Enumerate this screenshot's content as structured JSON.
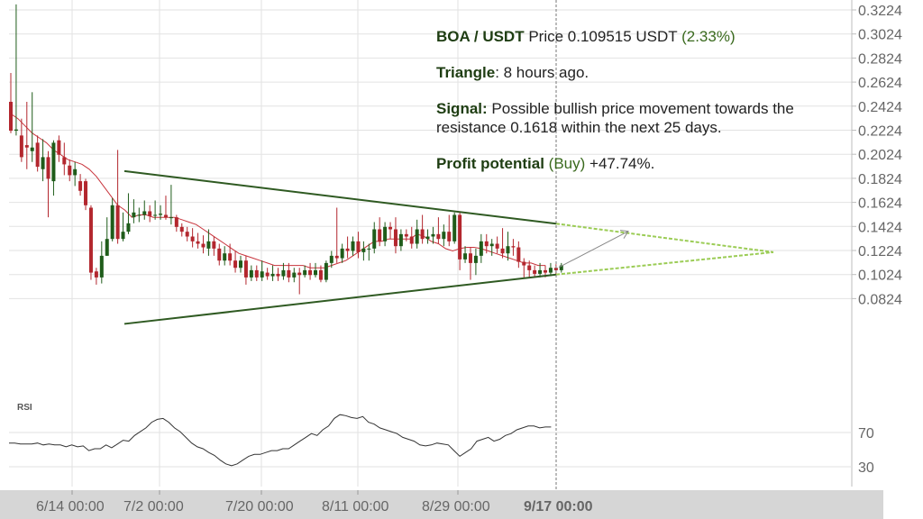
{
  "chart_data": {
    "type": "candlestick",
    "pair": "BOA / USDT",
    "y_ticks": [
      "0.3224",
      "0.3024",
      "0.2824",
      "0.2624",
      "0.2424",
      "0.2224",
      "0.2024",
      "0.1824",
      "0.1624",
      "0.1424",
      "0.1224",
      "0.1024",
      "0.0824"
    ],
    "ylim": [
      0.0824,
      0.3224
    ],
    "x_ticks": [
      "6/14 00:00",
      "7/2 00:00",
      "7/20 00:00",
      "8/11 00:00",
      "8/29 00:00"
    ],
    "current_time_label": "9/17 00:00",
    "rsi_label": "RSI",
    "rsi_ticks": [
      "70",
      "30"
    ],
    "rsi_range": [
      0,
      100
    ],
    "triangle": {
      "upper_start": 0.1884,
      "upper_end": 0.1447,
      "lower_start": 0.0614,
      "lower_end": 0.1024,
      "apex": 0.121
    },
    "projected_target": 0.1384,
    "candles": [
      [
        0.246,
        0.222,
        0.27,
        0.22
      ],
      [
        0.222,
        0.223,
        0.327,
        0.218
      ],
      [
        0.218,
        0.2,
        0.232,
        0.196
      ],
      [
        0.21,
        0.208,
        0.246,
        0.19
      ],
      [
        0.205,
        0.208,
        0.254,
        0.196
      ],
      [
        0.212,
        0.192,
        0.218,
        0.188
      ],
      [
        0.19,
        0.2,
        0.215,
        0.18
      ],
      [
        0.2,
        0.182,
        0.205,
        0.15
      ],
      [
        0.18,
        0.212,
        0.214,
        0.168
      ],
      [
        0.214,
        0.202,
        0.218,
        0.196
      ],
      [
        0.2,
        0.194,
        0.212,
        0.185
      ],
      [
        0.193,
        0.185,
        0.198,
        0.18
      ],
      [
        0.185,
        0.19,
        0.196,
        0.176
      ],
      [
        0.18,
        0.172,
        0.186,
        0.168
      ],
      [
        0.18,
        0.16,
        0.182,
        0.156
      ],
      [
        0.158,
        0.104,
        0.16,
        0.098
      ],
      [
        0.105,
        0.1,
        0.108,
        0.094
      ],
      [
        0.1,
        0.118,
        0.13,
        0.095
      ],
      [
        0.118,
        0.132,
        0.15,
        0.118
      ],
      [
        0.132,
        0.16,
        0.166,
        0.13
      ],
      [
        0.16,
        0.132,
        0.206,
        0.128
      ],
      [
        0.132,
        0.138,
        0.154,
        0.13
      ],
      [
        0.138,
        0.145,
        0.17,
        0.136
      ],
      [
        0.15,
        0.154,
        0.165,
        0.145
      ],
      [
        0.152,
        0.152,
        0.158,
        0.146
      ],
      [
        0.152,
        0.155,
        0.164,
        0.148
      ],
      [
        0.155,
        0.151,
        0.16,
        0.146
      ],
      [
        0.152,
        0.152,
        0.164,
        0.148
      ],
      [
        0.152,
        0.153,
        0.16,
        0.148
      ],
      [
        0.152,
        0.15,
        0.168,
        0.148
      ],
      [
        0.15,
        0.15,
        0.177,
        0.144
      ],
      [
        0.15,
        0.142,
        0.152,
        0.138
      ],
      [
        0.142,
        0.138,
        0.145,
        0.134
      ],
      [
        0.138,
        0.134,
        0.142,
        0.13
      ],
      [
        0.134,
        0.13,
        0.141,
        0.125
      ],
      [
        0.13,
        0.128,
        0.137,
        0.124
      ],
      [
        0.128,
        0.125,
        0.135,
        0.12
      ],
      [
        0.124,
        0.13,
        0.14,
        0.118
      ],
      [
        0.13,
        0.124,
        0.134,
        0.118
      ],
      [
        0.124,
        0.114,
        0.128,
        0.11
      ],
      [
        0.114,
        0.12,
        0.126,
        0.11
      ],
      [
        0.12,
        0.114,
        0.128,
        0.11
      ],
      [
        0.114,
        0.108,
        0.122,
        0.104
      ],
      [
        0.108,
        0.114,
        0.118,
        0.104
      ],
      [
        0.114,
        0.1,
        0.118,
        0.094
      ],
      [
        0.1,
        0.106,
        0.11,
        0.097
      ],
      [
        0.106,
        0.1,
        0.11,
        0.097
      ],
      [
        0.1,
        0.105,
        0.114,
        0.097
      ],
      [
        0.104,
        0.101,
        0.108,
        0.098
      ],
      [
        0.101,
        0.103,
        0.11,
        0.097
      ],
      [
        0.103,
        0.101,
        0.108,
        0.097
      ],
      [
        0.101,
        0.106,
        0.112,
        0.098
      ],
      [
        0.106,
        0.1,
        0.112,
        0.096
      ],
      [
        0.1,
        0.104,
        0.108,
        0.096
      ],
      [
        0.104,
        0.102,
        0.108,
        0.086
      ],
      [
        0.102,
        0.106,
        0.11,
        0.1
      ],
      [
        0.106,
        0.102,
        0.112,
        0.098
      ],
      [
        0.102,
        0.106,
        0.112,
        0.1
      ],
      [
        0.106,
        0.098,
        0.11,
        0.096
      ],
      [
        0.098,
        0.112,
        0.114,
        0.096
      ],
      [
        0.112,
        0.118,
        0.122,
        0.108
      ],
      [
        0.118,
        0.116,
        0.158,
        0.112
      ],
      [
        0.116,
        0.124,
        0.128,
        0.112
      ],
      [
        0.124,
        0.122,
        0.134,
        0.116
      ],
      [
        0.122,
        0.13,
        0.134,
        0.118
      ],
      [
        0.13,
        0.121,
        0.138,
        0.116
      ],
      [
        0.121,
        0.124,
        0.13,
        0.114
      ],
      [
        0.124,
        0.124,
        0.128,
        0.114
      ],
      [
        0.124,
        0.14,
        0.146,
        0.12
      ],
      [
        0.14,
        0.13,
        0.15,
        0.126
      ],
      [
        0.13,
        0.142,
        0.146,
        0.126
      ],
      [
        0.142,
        0.14,
        0.146,
        0.132
      ],
      [
        0.14,
        0.126,
        0.15,
        0.12
      ],
      [
        0.126,
        0.136,
        0.14,
        0.122
      ],
      [
        0.136,
        0.134,
        0.14,
        0.13
      ],
      [
        0.134,
        0.128,
        0.142,
        0.124
      ],
      [
        0.128,
        0.14,
        0.148,
        0.124
      ],
      [
        0.14,
        0.132,
        0.152,
        0.128
      ],
      [
        0.132,
        0.134,
        0.14,
        0.128
      ],
      [
        0.134,
        0.136,
        0.142,
        0.128
      ],
      [
        0.136,
        0.132,
        0.15,
        0.128
      ],
      [
        0.132,
        0.138,
        0.144,
        0.126
      ],
      [
        0.138,
        0.13,
        0.152,
        0.126
      ],
      [
        0.13,
        0.152,
        0.154,
        0.128
      ],
      [
        0.152,
        0.115,
        0.154,
        0.106
      ],
      [
        0.115,
        0.12,
        0.126,
        0.112
      ],
      [
        0.12,
        0.112,
        0.125,
        0.098
      ],
      [
        0.112,
        0.118,
        0.124,
        0.102
      ],
      [
        0.118,
        0.13,
        0.136,
        0.112
      ],
      [
        0.13,
        0.126,
        0.136,
        0.12
      ],
      [
        0.126,
        0.128,
        0.132,
        0.118
      ],
      [
        0.128,
        0.124,
        0.134,
        0.12
      ],
      [
        0.124,
        0.12,
        0.141,
        0.116
      ],
      [
        0.12,
        0.126,
        0.138,
        0.114
      ],
      [
        0.126,
        0.125,
        0.132,
        0.118
      ],
      [
        0.125,
        0.113,
        0.13,
        0.108
      ],
      [
        0.113,
        0.11,
        0.116,
        0.1
      ],
      [
        0.11,
        0.106,
        0.114,
        0.1
      ],
      [
        0.106,
        0.103,
        0.11,
        0.1
      ],
      [
        0.103,
        0.106,
        0.112,
        0.1
      ],
      [
        0.106,
        0.104,
        0.11,
        0.1
      ],
      [
        0.104,
        0.108,
        0.112,
        0.101
      ],
      [
        0.108,
        0.106,
        0.111,
        0.103
      ],
      [
        0.106,
        0.11,
        0.112,
        0.104
      ]
    ],
    "moving_average": [
      0.236,
      0.232,
      0.226,
      0.22,
      0.216,
      0.212,
      0.206,
      0.202,
      0.198,
      0.196,
      0.194,
      0.19,
      0.184,
      0.176,
      0.168,
      0.16,
      0.156,
      0.15,
      0.152,
      0.152,
      0.15,
      0.15,
      0.15,
      0.15,
      0.148,
      0.146,
      0.144,
      0.14,
      0.136,
      0.132,
      0.128,
      0.124,
      0.12,
      0.118,
      0.116,
      0.114,
      0.112,
      0.11,
      0.11,
      0.11,
      0.11,
      0.11,
      0.108,
      0.108,
      0.108,
      0.11,
      0.112,
      0.114,
      0.118,
      0.122,
      0.126,
      0.13,
      0.13,
      0.132,
      0.132,
      0.132,
      0.132,
      0.136,
      0.134,
      0.13,
      0.128,
      0.124,
      0.122,
      0.124,
      0.125,
      0.125,
      0.124,
      0.122,
      0.12,
      0.118,
      0.116,
      0.114,
      0.112,
      0.112,
      0.11,
      0.11
    ],
    "rsi": [
      46,
      46,
      45,
      45,
      45,
      46,
      44,
      45,
      44,
      44,
      42,
      44,
      42,
      43,
      38,
      40,
      40,
      44,
      41,
      45,
      49,
      48,
      54,
      58,
      62,
      68,
      71,
      72,
      68,
      62,
      58,
      52,
      46,
      42,
      40,
      36,
      33,
      28,
      24,
      22,
      24,
      28,
      32,
      34,
      34,
      36,
      38,
      38,
      40,
      40,
      44,
      48,
      52,
      56,
      54,
      60,
      64,
      72,
      76,
      75,
      73,
      72,
      74,
      68,
      66,
      62,
      60,
      58,
      56,
      52,
      50,
      48,
      44,
      43,
      44,
      46,
      45,
      44,
      38,
      32,
      36,
      40,
      48,
      50,
      52,
      48,
      50,
      54,
      56,
      60,
      62,
      64,
      64,
      62,
      63,
      63
    ],
    "info": {
      "title_bold": "BOA / USDT",
      "title_price": " Price 0.109515 USDT ",
      "title_change": "(2.33%)",
      "triangle_label": "Triangle",
      "triangle_text": ": 8 hours ago.",
      "signal_label": "Signal:",
      "signal_text": " Possible bullish price movement towards the resistance 0.1618 within the next 25 days.",
      "profit_label": "Profit potential",
      "profit_mid": " (Buy) ",
      "profit_value": "+47.74%."
    },
    "colors": {
      "up": "#1f5c1a",
      "down": "#b3272e",
      "trend": "#2f5a22",
      "projection": "#9bcc55",
      "ma": "#c8343c"
    }
  }
}
